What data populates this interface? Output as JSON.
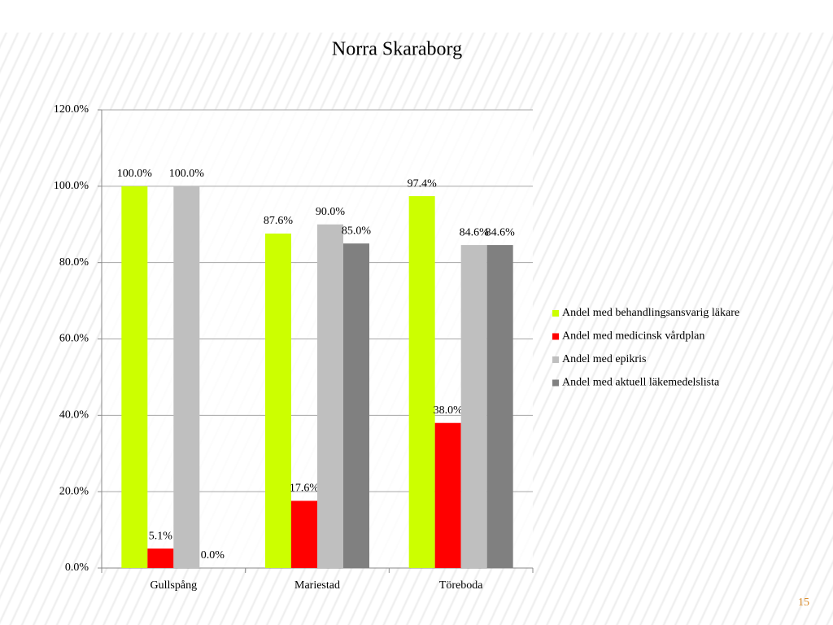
{
  "chart_data": {
    "type": "bar",
    "title": "Norra Skaraborg",
    "categories": [
      "Gullspång",
      "Mariestad",
      "Töreboda"
    ],
    "series": [
      {
        "name": "Andel med behandlingsansvarig läkare",
        "color": "#ccff00",
        "values": [
          100.0,
          87.6,
          97.4
        ],
        "value_labels": [
          "100.0%",
          "87.6%",
          "97.4%"
        ]
      },
      {
        "name": "Andel med medicinsk vårdplan",
        "color": "#ff0000",
        "values": [
          5.1,
          17.6,
          38.0
        ],
        "value_labels": [
          "5.1%",
          "17.6%",
          "38.0%"
        ]
      },
      {
        "name": "Andel med epikris",
        "color": "#bfbfbf",
        "values": [
          100.0,
          90.0,
          84.6
        ],
        "value_labels": [
          "100.0%",
          "90.0%",
          "84.6%"
        ]
      },
      {
        "name": "Andel med aktuell läkemedelslista",
        "color": "#808080",
        "values": [
          0.0,
          85.0,
          84.6
        ],
        "value_labels": [
          "0.0%",
          "85.0%",
          "84.6%"
        ]
      }
    ],
    "ylim": [
      0,
      120
    ],
    "yticks": [
      {
        "value": 0,
        "label": "0.0%"
      },
      {
        "value": 20,
        "label": "20.0%"
      },
      {
        "value": 40,
        "label": "40.0%"
      },
      {
        "value": 60,
        "label": "60.0%"
      },
      {
        "value": 80,
        "label": "80.0%"
      },
      {
        "value": 100,
        "label": "100.0%"
      },
      {
        "value": 120,
        "label": "120.0%"
      }
    ],
    "grid": true,
    "legend": "right"
  },
  "slide_number": "15"
}
